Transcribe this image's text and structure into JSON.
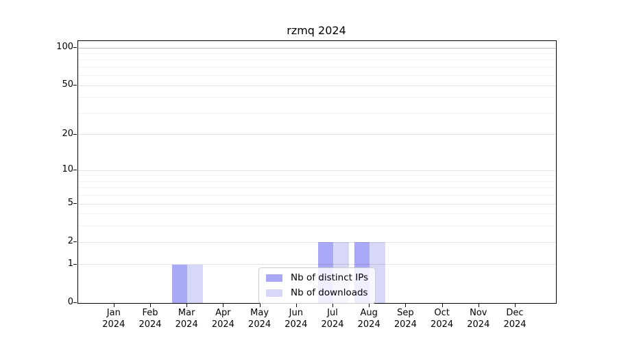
{
  "title": "rzmq 2024",
  "chart_data": {
    "type": "bar",
    "title": "rzmq 2024",
    "categories": [
      "Jan 2024",
      "Feb 2024",
      "Mar 2024",
      "Apr 2024",
      "May 2024",
      "Jun 2024",
      "Jul 2024",
      "Aug 2024",
      "Sep 2024",
      "Oct 2024",
      "Nov 2024",
      "Dec 2024"
    ],
    "series": [
      {
        "name": "Nb of distinct IPs",
        "color": "#a9a9f7",
        "values": [
          0,
          0,
          1,
          0,
          0,
          0,
          2,
          2,
          0,
          0,
          0,
          0
        ]
      },
      {
        "name": "Nb of downloads",
        "color": "#d7d7f7",
        "values": [
          0,
          0,
          1,
          0,
          0,
          0,
          2,
          2,
          0,
          0,
          0,
          0
        ]
      }
    ],
    "xlabel": "",
    "ylabel": "",
    "y_scale": "log1p",
    "y_ticks": [
      0,
      1,
      2,
      5,
      10,
      20,
      50,
      100
    ],
    "y_minor_ticks": [
      3,
      4,
      6,
      7,
      8,
      9,
      30,
      40,
      60,
      70,
      80,
      90
    ],
    "ylim": [
      0,
      113
    ],
    "grid": "both",
    "legend": {
      "position": "lower-center-inside",
      "items": [
        "Nb of distinct IPs",
        "Nb of downloads"
      ]
    }
  },
  "colors": {
    "bar_distinct_ips": "#a9a9f7",
    "bar_downloads": "#d7d7f7",
    "spine": "#000000",
    "background": "#ffffff"
  }
}
